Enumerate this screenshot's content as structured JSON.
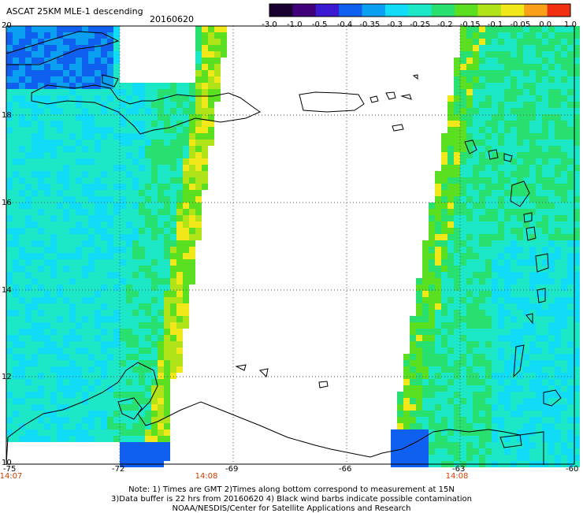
{
  "header": {
    "product": "ASCAT 25KM MLE-1 descending",
    "date": "20160620"
  },
  "colorbar": {
    "labels": [
      "-3.0",
      "-1.0",
      "-0.5",
      "-0.4",
      "-0.35",
      "-0.3",
      "-0.25",
      "-0.2",
      "-0.15",
      "-0.1",
      "-0.05",
      "0.0",
      "1.0"
    ],
    "colors": [
      "#1a0030",
      "#40007a",
      "#3a1ad0",
      "#1060f0",
      "#0a9ff0",
      "#10dcf8",
      "#1ce8c8",
      "#28e070",
      "#5ae020",
      "#b0e418",
      "#f0e818",
      "#f8a018",
      "#f03010"
    ]
  },
  "axes": {
    "lon_ticks": [
      "-75",
      "-72",
      "-69",
      "-66",
      "-63",
      "-60"
    ],
    "lat_ticks": [
      "20",
      "18",
      "16",
      "14",
      "12",
      "10"
    ]
  },
  "times": [
    "14:07",
    "14:08",
    "14:08"
  ],
  "notes": {
    "line1": "Note: 1) Times are GMT 2)Times along bottom correspond to measurement at 15N",
    "line2": "3)Data buffer is 22 hrs from 20160620 4) Black wind barbs indicate possible contamination",
    "line3": "NOAA/NESDIS/Center for Satellite Applications and Research"
  }
}
